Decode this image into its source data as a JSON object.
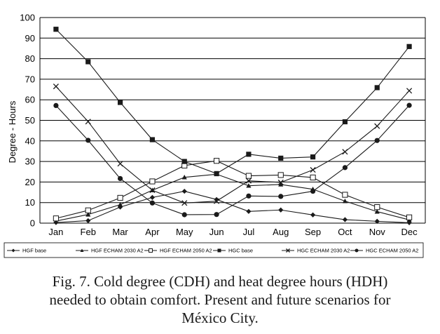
{
  "chart_data": {
    "type": "line",
    "categories": [
      "Jan",
      "Feb",
      "Mar",
      "Apr",
      "May",
      "Jun",
      "Jul",
      "Aug",
      "Sep",
      "Oct",
      "Nov",
      "Dec"
    ],
    "ylabel": "Degree - Hours",
    "ylim": [
      0,
      100
    ],
    "yticks": [
      "0",
      "10",
      "20",
      "30",
      "40",
      "50",
      "60",
      "70",
      "80",
      "90",
      "100"
    ],
    "grid": true,
    "legend_position": "bottom",
    "series": [
      {
        "name": "HGF base",
        "marker": "diamond",
        "values": [
          0.3,
          1.2,
          7.8,
          12.5,
          15.5,
          11.5,
          5.7,
          6.4,
          4.0,
          1.7,
          0.9,
          0.2
        ]
      },
      {
        "name": "HGF ECHAM 2030 A2",
        "marker": "triangle",
        "values": [
          1.0,
          4.2,
          9.0,
          16.0,
          22.3,
          23.8,
          18.2,
          18.8,
          16.5,
          10.7,
          5.6,
          1.6
        ]
      },
      {
        "name": "HGF ECHAM 2050 A2",
        "marker": "open-square",
        "values": [
          2.3,
          6.2,
          12.3,
          20.3,
          28.0,
          30.3,
          23.0,
          23.4,
          22.2,
          13.8,
          7.8,
          2.8
        ]
      },
      {
        "name": "HGC base",
        "marker": "square",
        "values": [
          94.3,
          78.5,
          58.7,
          40.6,
          30.0,
          24.1,
          33.5,
          31.6,
          32.2,
          49.3,
          65.9,
          85.9
        ]
      },
      {
        "name": "HGC ECHAM 2030 A2",
        "marker": "x",
        "values": [
          66.5,
          49.4,
          28.9,
          16.0,
          9.8,
          10.7,
          20.6,
          19.8,
          25.9,
          34.7,
          47.2,
          64.4
        ]
      },
      {
        "name": "HGC ECHAM 2050 A2",
        "marker": "circle",
        "values": [
          57.2,
          40.3,
          21.7,
          9.8,
          4.1,
          4.2,
          13.2,
          13.0,
          15.5,
          27.0,
          40.2,
          57.3
        ]
      }
    ]
  },
  "caption": {
    "lines": [
      "Fig. 7. Cold degree (CDH) and heat degree hours (HDH)",
      "needed to obtain comfort. Present and future scenarios for",
      "México City."
    ]
  },
  "colors": {
    "line": "#1a1a1a",
    "grid": "#000000",
    "background": "#ffffff"
  }
}
